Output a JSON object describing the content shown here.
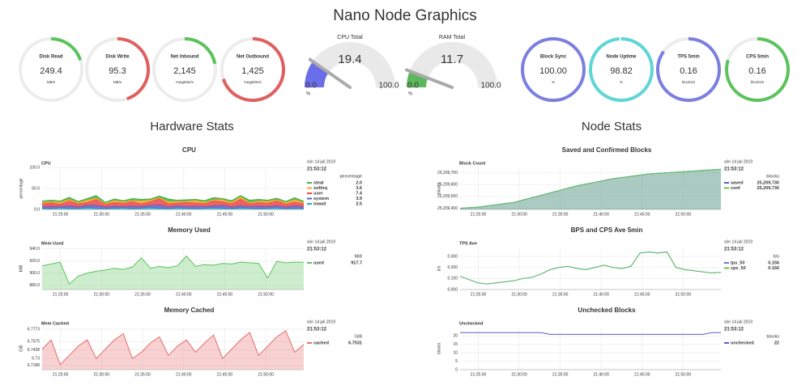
{
  "header": {
    "title": "Nano Node Graphics"
  },
  "gauges": [
    {
      "label": "Disk Read",
      "value": "249.4",
      "unit": "MB/s",
      "arc": 20,
      "color": "#5cc35c"
    },
    {
      "label": "Disk Write",
      "value": "95.3",
      "unit": "MB/s",
      "arc": 45,
      "color": "#e06060"
    },
    {
      "label": "Net Inbound",
      "value": "2,145",
      "unit": "megabits/s",
      "arc": 22,
      "color": "#5cc35c"
    },
    {
      "label": "Net Outbound",
      "value": "1,425",
      "unit": "megabits/s",
      "arc": 70,
      "color": "#e06060"
    },
    {
      "label": "Block Sync",
      "value": "100.00",
      "unit": "%",
      "arc": 100,
      "color": "#7b7fe0"
    },
    {
      "label": "Node Uptime",
      "value": "98.82",
      "unit": "%",
      "arc": 99,
      "color": "#5fd6d6"
    },
    {
      "label": "TPS 5min",
      "value": "0.16",
      "unit": "blocks/s",
      "arc": 85,
      "color": "#7b7fe0"
    },
    {
      "label": "CPS 5min",
      "value": "0.16",
      "unit": "blocks/s",
      "arc": 80,
      "color": "#5cc35c"
    }
  ],
  "dials": [
    {
      "title": "CPU Total",
      "value": 19.4,
      "min": {
        "value": 0,
        "label": "0.0"
      },
      "max": {
        "value": 100,
        "label": "100.0"
      },
      "unit": "%",
      "color": "#6a6ee8"
    },
    {
      "title": "RAM Total",
      "value": 11.7,
      "min": {
        "value": 0,
        "label": "0.0"
      },
      "max": {
        "value": 100,
        "label": "100.0"
      },
      "unit": "%",
      "color": "#5cb85c"
    }
  ],
  "hardware": {
    "title": "Hardware Stats",
    "charts": [
      {
        "type": "area",
        "title": "CPU",
        "subtitle": "CPU",
        "y_label": "percentage",
        "unit": "percentage",
        "date": "sön 14 juli 2019",
        "time": "21:53:12",
        "stacked": true,
        "fill": true,
        "ylim": [
          0,
          100
        ],
        "yticks": [
          {
            "value": 0,
            "label": "0.0"
          },
          {
            "value": 50,
            "label": "50.0"
          },
          {
            "value": 100,
            "label": "100.0"
          }
        ],
        "xticks": [
          "21:25:00",
          "21:30:00",
          "21:35:00",
          "21:40:00",
          "21:45:00",
          "21:50:00"
        ],
        "series": [
          {
            "name": "steal",
            "color": "#3cb44b",
            "current": "2.0",
            "values": [
              2,
              3,
              2,
              4,
              2,
              3,
              5,
              2,
              3,
              2,
              4,
              3,
              2,
              3,
              6,
              2,
              3,
              2,
              3,
              4,
              2,
              3,
              2,
              5,
              3,
              2,
              3,
              2,
              4,
              2
            ]
          },
          {
            "name": "softirq",
            "color": "#f5a623",
            "current": "3.6",
            "values": [
              4,
              3,
              5,
              4,
              3,
              6,
              4,
              3,
              5,
              4,
              3,
              7,
              4,
              3,
              5,
              4,
              3,
              6,
              4,
              3,
              5,
              4,
              6,
              3,
              4,
              5,
              3,
              4,
              6,
              3.6
            ]
          },
          {
            "name": "user",
            "color": "#e8474c",
            "current": "7.4",
            "values": [
              7,
              9,
              6,
              12,
              8,
              7,
              14,
              6,
              9,
              8,
              11,
              7,
              9,
              15,
              8,
              7,
              10,
              8,
              7,
              12,
              9,
              8,
              16,
              7,
              9,
              8,
              12,
              7,
              9,
              7.4
            ]
          },
          {
            "name": "system",
            "color": "#5b5fc7",
            "current": "3.9",
            "values": [
              4,
              5,
              3,
              6,
              4,
              5,
              7,
              4,
              5,
              3,
              6,
              4,
              5,
              8,
              4,
              5,
              4,
              6,
              4,
              5,
              7,
              4,
              5,
              4,
              6,
              4,
              5,
              4,
              6,
              3.9
            ]
          },
          {
            "name": "iowait",
            "color": "#2ca6c9",
            "current": "2.5",
            "values": [
              3,
              2,
              4,
              3,
              2,
              5,
              3,
              2,
              3,
              4,
              2,
              3,
              5,
              3,
              2,
              4,
              3,
              2,
              3,
              4,
              3,
              2,
              4,
              3,
              2,
              3,
              4,
              2,
              3,
              2.5
            ]
          }
        ]
      },
      {
        "type": "area",
        "title": "Memory Used",
        "subtitle": "Mem Used",
        "y_label": "MiB",
        "unit": "MiB",
        "date": "sön 14 juli 2019",
        "time": "21:53:12",
        "stacked": false,
        "fill": true,
        "ylim": [
          873,
          942
        ],
        "yticks": [
          {
            "value": 880,
            "label": "880.0"
          },
          {
            "value": 900,
            "label": "900.0"
          },
          {
            "value": 920,
            "label": "920.0"
          },
          {
            "value": 940,
            "label": "940.0"
          }
        ],
        "xticks": [
          "21:25:00",
          "21:30:00",
          "21:35:00",
          "21:40:00",
          "21:45:00",
          "21:50:00"
        ],
        "series": [
          {
            "name": "used",
            "color": "#5cc35c",
            "current": "917.7",
            "values": [
              912,
              915,
              918,
              882,
              895,
              900,
              903,
              905,
              908,
              906,
              910,
              925,
              908,
              911,
              909,
              912,
              928,
              911,
              914,
              913,
              916,
              915,
              918,
              917,
              916,
              892,
              919,
              917,
              918,
              917.7
            ]
          }
        ]
      },
      {
        "type": "area",
        "title": "Memory Cached",
        "subtitle": "Mem Cached",
        "y_label": "GiB",
        "unit": "GiB",
        "date": "sön 14 juli 2019",
        "time": "21:53:12",
        "stacked": false,
        "fill": true,
        "ylim": [
          6.712,
          6.78
        ],
        "yticks": [
          6.7188,
          6.73,
          6.7438,
          6.7575,
          6.7773
        ],
        "xticks": [
          "21:25:00",
          "21:30:00",
          "21:35:00",
          "21:40:00",
          "21:45:00",
          "21:50:00"
        ],
        "series": [
          {
            "name": "cached",
            "color": "#e86b6b",
            "current": "6.7531",
            "values": [
              6.745,
              6.76,
              6.72,
              6.735,
              6.75,
              6.76,
              6.73,
              6.745,
              6.76,
              6.77,
              6.73,
              6.74,
              6.755,
              6.765,
              6.735,
              6.75,
              6.76,
              6.74,
              6.755,
              6.768,
              6.73,
              6.745,
              6.76,
              6.772,
              6.735,
              6.75,
              6.765,
              6.775,
              6.74,
              6.7531
            ]
          }
        ]
      }
    ]
  },
  "node": {
    "title": "Node Stats",
    "charts": [
      {
        "type": "area",
        "title": "Saved and Confirmed Blocks",
        "subtitle": "Block Count",
        "y_label": "blocks",
        "unit": "blocks",
        "date": "sön 14 juli 2019",
        "time": "21:53:12",
        "stacked": false,
        "fill": true,
        "ylim": [
          25209390,
          25209745
        ],
        "yticks": [
          {
            "value": 25209400,
            "label": "25,209,400"
          },
          {
            "value": 25209500,
            "label": "25,209,500"
          },
          {
            "value": 25209600,
            "label": "25,209,600"
          },
          {
            "value": 25209700,
            "label": "25,209,700"
          }
        ],
        "xticks": [
          "21:25:00",
          "21:30:00",
          "21:35:00",
          "21:40:00",
          "21:45:00",
          "21:50:00"
        ],
        "series": [
          {
            "name": "saved",
            "color": "#5b5fc7",
            "current": "25,209,730",
            "values": [
              25209400,
              25209405,
              25209410,
              25209420,
              25209430,
              25209440,
              25209450,
              25209470,
              25209490,
              25209510,
              25209530,
              25209550,
              25209570,
              25209590,
              25209605,
              25209620,
              25209635,
              25209650,
              25209660,
              25209670,
              25209680,
              25209690,
              25209695,
              25209700,
              25209705,
              25209710,
              25209715,
              25209720,
              25209725,
              25209730
            ]
          },
          {
            "name": "conf",
            "color": "#5cc35c",
            "current": "25,209,730",
            "values": [
              25209400,
              25209405,
              25209410,
              25209420,
              25209430,
              25209440,
              25209450,
              25209470,
              25209490,
              25209510,
              25209530,
              25209550,
              25209570,
              25209590,
              25209605,
              25209620,
              25209635,
              25209650,
              25209660,
              25209670,
              25209680,
              25209690,
              25209695,
              25209700,
              25209705,
              25209710,
              25209715,
              25209720,
              25209725,
              25209730
            ]
          }
        ]
      },
      {
        "type": "line",
        "title": "BPS and CPS Ave 5min",
        "subtitle": "TPS Ave",
        "y_label": "b/s",
        "unit": "b/s",
        "date": "sön 14 juli 2019",
        "time": "21:53:12",
        "stacked": false,
        "fill": false,
        "ylim": [
          0,
          0.38
        ],
        "yticks": [
          {
            "value": 0,
            "label": "0.000"
          },
          {
            "value": 0.1,
            "label": "0.100"
          },
          {
            "value": 0.2,
            "label": "0.200"
          },
          {
            "value": 0.3,
            "label": "0.300"
          }
        ],
        "xticks": [
          "21:25:00",
          "21:30:00",
          "21:35:00",
          "21:40:00",
          "21:45:00",
          "21:50:00"
        ],
        "series": [
          {
            "name": "tps_50",
            "color": "#7b6fd6",
            "current": "0.156",
            "values": [
              0.12,
              0.09,
              0.06,
              0.05,
              0.06,
              0.07,
              0.08,
              0.1,
              0.11,
              0.14,
              0.18,
              0.2,
              0.21,
              0.19,
              0.18,
              0.2,
              0.22,
              0.2,
              0.19,
              0.21,
              0.33,
              0.34,
              0.33,
              0.34,
              0.2,
              0.18,
              0.17,
              0.16,
              0.15,
              0.156
            ]
          },
          {
            "name": "cps_50",
            "color": "#5cc35c",
            "current": "0.156",
            "values": [
              0.12,
              0.09,
              0.06,
              0.05,
              0.06,
              0.07,
              0.08,
              0.1,
              0.11,
              0.14,
              0.18,
              0.2,
              0.21,
              0.19,
              0.18,
              0.2,
              0.22,
              0.2,
              0.19,
              0.21,
              0.33,
              0.34,
              0.33,
              0.34,
              0.2,
              0.18,
              0.17,
              0.16,
              0.15,
              0.156
            ]
          }
        ]
      },
      {
        "type": "line",
        "title": "Unchecked Blocks",
        "subtitle": "Unchecked",
        "y_label": "blocks",
        "unit": "blocks",
        "date": "sön 14 juli 2019",
        "time": "21:53:12",
        "stacked": false,
        "fill": false,
        "ylim": [
          0,
          25
        ],
        "yticks": [
          0,
          5,
          10,
          15,
          20
        ],
        "xticks": [
          "21:25:00",
          "21:30:00",
          "21:35:00",
          "21:40:00",
          "21:45:00",
          "21:50:00"
        ],
        "series": [
          {
            "name": "unchecked",
            "color": "#5b5fc7",
            "current": "22",
            "values": [
              22,
              22,
              22,
              22,
              22,
              22,
              22,
              22,
              22,
              22,
              21,
              21,
              21,
              21,
              21,
              21,
              21,
              21,
              21,
              21,
              21,
              21,
              21,
              21,
              21,
              21,
              21,
              21,
              22,
              22
            ]
          }
        ]
      }
    ]
  }
}
